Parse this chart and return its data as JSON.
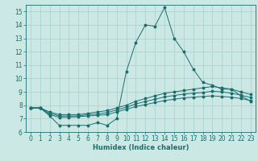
{
  "title": "",
  "xlabel": "Humidex (Indice chaleur)",
  "bg_color": "#cce8e4",
  "grid_color": "#aacfca",
  "line_color": "#1a6e6e",
  "xlim": [
    -0.5,
    23.5
  ],
  "ylim": [
    6,
    15.5
  ],
  "yticks": [
    6,
    7,
    8,
    9,
    10,
    11,
    12,
    13,
    14,
    15
  ],
  "xticks": [
    0,
    1,
    2,
    3,
    4,
    5,
    6,
    7,
    8,
    9,
    10,
    11,
    12,
    13,
    14,
    15,
    16,
    17,
    18,
    19,
    20,
    21,
    22,
    23
  ],
  "series1_x": [
    0,
    1,
    2,
    3,
    4,
    5,
    6,
    7,
    8,
    9,
    10,
    11,
    12,
    13,
    14,
    15,
    16,
    17,
    18,
    19,
    20,
    21,
    22,
    23
  ],
  "series1_y": [
    7.8,
    7.8,
    7.2,
    6.5,
    6.5,
    6.5,
    6.5,
    6.7,
    6.5,
    7.0,
    10.5,
    12.7,
    14.0,
    13.9,
    15.3,
    13.0,
    12.0,
    10.7,
    9.7,
    9.5,
    9.2,
    9.2,
    8.7,
    8.3
  ],
  "series2_x": [
    0,
    1,
    2,
    3,
    4,
    5,
    6,
    7,
    8,
    9,
    10,
    11,
    12,
    13,
    14,
    15,
    16,
    17,
    18,
    19,
    20,
    21,
    22,
    23
  ],
  "series2_y": [
    7.8,
    7.8,
    7.5,
    7.3,
    7.3,
    7.3,
    7.4,
    7.5,
    7.6,
    7.8,
    8.0,
    8.3,
    8.5,
    8.7,
    8.9,
    9.0,
    9.1,
    9.2,
    9.3,
    9.4,
    9.3,
    9.2,
    9.0,
    8.8
  ],
  "series3_x": [
    0,
    1,
    2,
    3,
    4,
    5,
    6,
    7,
    8,
    9,
    10,
    11,
    12,
    13,
    14,
    15,
    16,
    17,
    18,
    19,
    20,
    21,
    22,
    23
  ],
  "series3_y": [
    7.8,
    7.8,
    7.3,
    7.1,
    7.1,
    7.15,
    7.2,
    7.25,
    7.3,
    7.5,
    7.7,
    7.9,
    8.05,
    8.2,
    8.35,
    8.45,
    8.55,
    8.6,
    8.65,
    8.7,
    8.65,
    8.6,
    8.5,
    8.35
  ],
  "series4_x": [
    0,
    1,
    2,
    3,
    4,
    5,
    6,
    7,
    8,
    9,
    10,
    11,
    12,
    13,
    14,
    15,
    16,
    17,
    18,
    19,
    20,
    21,
    22,
    23
  ],
  "series4_y": [
    7.8,
    7.8,
    7.4,
    7.2,
    7.2,
    7.2,
    7.3,
    7.35,
    7.45,
    7.65,
    7.85,
    8.1,
    8.28,
    8.45,
    8.62,
    8.73,
    8.83,
    8.9,
    8.95,
    9.05,
    9.0,
    8.9,
    8.75,
    8.58
  ],
  "tick_fontsize": 5.5,
  "xlabel_fontsize": 6.0
}
